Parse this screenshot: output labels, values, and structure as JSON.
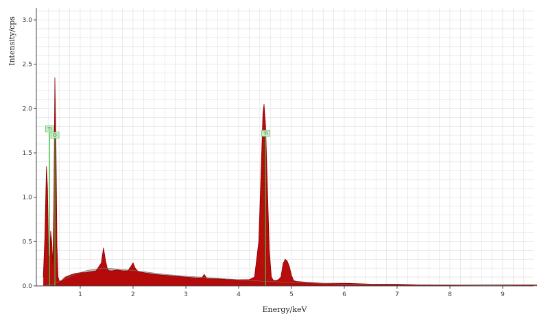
{
  "chart_data": {
    "type": "area",
    "title": "",
    "xlabel": "Energy/keV",
    "ylabel": "Intensity/cps",
    "xlim": [
      0.3,
      10
    ],
    "ylim": [
      0,
      3.1
    ],
    "x_ticks": [
      1,
      2,
      3,
      4,
      5,
      6,
      7,
      8,
      9
    ],
    "y_ticks": [
      "0.0",
      "0.5",
      "1.0",
      "1.5",
      "2.0",
      "2.5",
      "3.0"
    ],
    "y_tick_values": [
      0,
      0.5,
      1.0,
      1.5,
      2.0,
      2.5,
      3.0
    ],
    "grid": true,
    "spectrum": {
      "x": [
        0.3,
        0.33,
        0.36,
        0.38,
        0.4,
        0.42,
        0.44,
        0.46,
        0.48,
        0.5,
        0.52,
        0.54,
        0.56,
        0.58,
        0.6,
        0.62,
        0.64,
        0.68,
        0.72,
        0.8,
        0.9,
        1.0,
        1.1,
        1.2,
        1.3,
        1.4,
        1.44,
        1.48,
        1.52,
        1.56,
        1.6,
        1.7,
        1.8,
        1.9,
        1.96,
        2.0,
        2.04,
        2.1,
        2.2,
        2.4,
        2.6,
        2.8,
        3.0,
        3.2,
        3.3,
        3.35,
        3.4,
        3.5,
        3.6,
        3.8,
        4.0,
        4.2,
        4.3,
        4.38,
        4.42,
        4.46,
        4.48,
        4.51,
        4.54,
        4.58,
        4.62,
        4.66,
        4.7,
        4.75,
        4.8,
        4.84,
        4.88,
        4.92,
        4.96,
        5.0,
        5.04,
        5.1,
        5.3,
        5.6,
        6.0,
        6.5,
        7.0,
        7.5,
        8.0,
        8.5,
        9.0,
        9.5,
        10.0
      ],
      "y": [
        0.1,
        0.55,
        1.35,
        1.1,
        0.35,
        0.3,
        0.62,
        0.5,
        0.25,
        0.9,
        2.35,
        1.6,
        0.45,
        0.1,
        0.06,
        0.05,
        0.06,
        0.08,
        0.1,
        0.12,
        0.14,
        0.15,
        0.15,
        0.16,
        0.17,
        0.26,
        0.43,
        0.28,
        0.18,
        0.17,
        0.17,
        0.18,
        0.17,
        0.17,
        0.22,
        0.26,
        0.2,
        0.16,
        0.15,
        0.13,
        0.12,
        0.11,
        0.1,
        0.09,
        0.09,
        0.13,
        0.08,
        0.08,
        0.08,
        0.07,
        0.07,
        0.07,
        0.1,
        0.5,
        1.2,
        1.95,
        2.05,
        1.8,
        1.2,
        0.4,
        0.1,
        0.06,
        0.06,
        0.07,
        0.1,
        0.25,
        0.3,
        0.28,
        0.22,
        0.12,
        0.06,
        0.05,
        0.04,
        0.03,
        0.03,
        0.02,
        0.02,
        0.01,
        0.01,
        0.01,
        0.01,
        0.01,
        0.01
      ],
      "fill_color": "#b40000"
    },
    "background": {
      "x": [
        0.3,
        0.5,
        0.7,
        0.9,
        1.1,
        1.3,
        1.5,
        1.7,
        1.9,
        2.2,
        2.6,
        3.0,
        3.5,
        4.0,
        4.5,
        5.0,
        5.5,
        6.0,
        7.0,
        8.0,
        9.0,
        10.0
      ],
      "y": [
        0.0,
        0.02,
        0.08,
        0.13,
        0.17,
        0.19,
        0.2,
        0.19,
        0.18,
        0.16,
        0.13,
        0.11,
        0.09,
        0.07,
        0.05,
        0.04,
        0.03,
        0.02,
        0.015,
        0.01,
        0.005,
        0.0
      ],
      "fill_color": "#b8b8b8"
    },
    "peak_labels": [
      {
        "text": "Ti",
        "x": 0.42,
        "y": 1.77,
        "line_to": 0.0
      },
      {
        "text": "O",
        "x": 0.52,
        "y": 1.7,
        "line_to": 0.0
      },
      {
        "text": "Ti",
        "x": 4.51,
        "y": 1.72,
        "line_to": 0.0
      }
    ],
    "colors": {
      "grid": "#dddddd",
      "marker_line": "#3cc43c",
      "tag_fill": "#c8f0c8",
      "tag_stroke": "#5aa55a"
    }
  }
}
